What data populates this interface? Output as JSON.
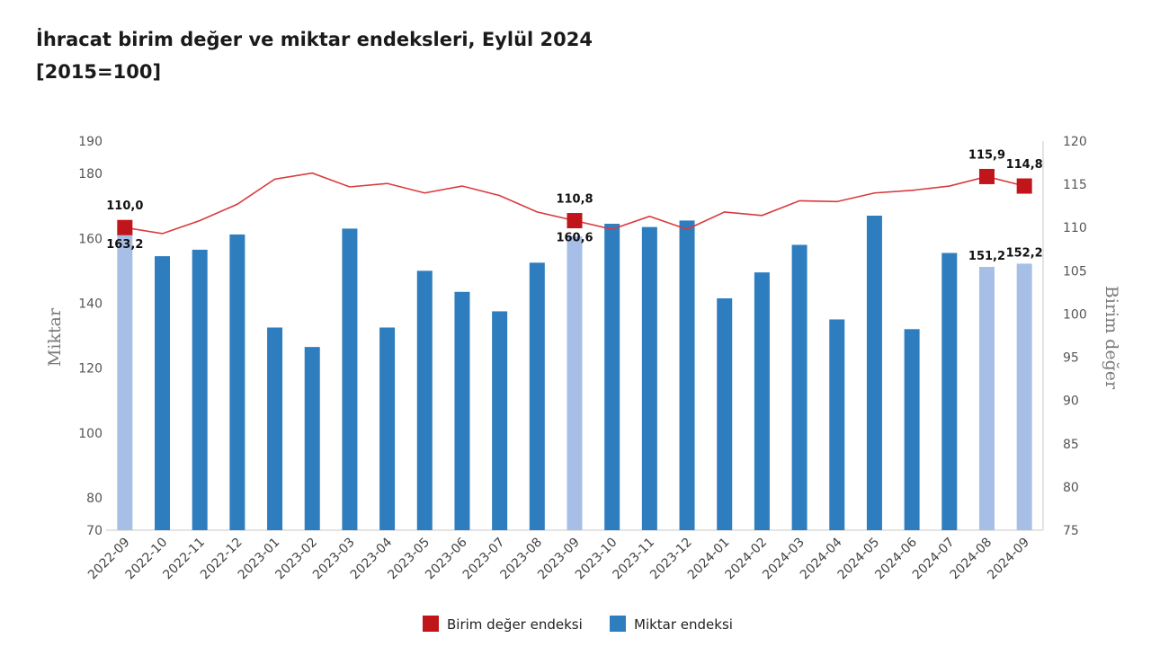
{
  "title": {
    "line1": "İhracat birim değer ve miktar endeksleri, Eylül 2024",
    "line2": "[2015=100]"
  },
  "colors": {
    "bar": "#2e7ebf",
    "bar_highlight": "#a7bfe6",
    "line": "#d9393d",
    "marker": "#c0151b",
    "axis": "#c8c8c8"
  },
  "chart_data": {
    "type": "bar+line",
    "categories": [
      "2022-09",
      "2022-10",
      "2022-11",
      "2022-12",
      "2023-01",
      "2023-02",
      "2023-03",
      "2023-04",
      "2023-05",
      "2023-06",
      "2023-07",
      "2023-08",
      "2023-09",
      "2023-10",
      "2023-11",
      "2023-12",
      "2024-01",
      "2024-02",
      "2024-03",
      "2024-04",
      "2024-05",
      "2024-06",
      "2024-07",
      "2024-08",
      "2024-09"
    ],
    "series": [
      {
        "name": "Miktar endeksi",
        "type": "bar",
        "axis": "left",
        "values": [
          163.2,
          154.5,
          156.5,
          161.2,
          132.5,
          126.5,
          163.0,
          132.5,
          150.0,
          143.5,
          137.5,
          152.5,
          160.6,
          164.5,
          163.5,
          165.5,
          141.5,
          149.5,
          158.0,
          135.0,
          167.0,
          132.0,
          155.5,
          151.2,
          152.2
        ],
        "highlighted": [
          "2022-09",
          "2023-09",
          "2024-08",
          "2024-09"
        ],
        "labels": {
          "2022-09": "163,2",
          "2023-09": "160,6",
          "2024-08": "151,2",
          "2024-09": "152,2"
        }
      },
      {
        "name": "Birim değer endeksi",
        "type": "line",
        "axis": "right",
        "values": [
          110.0,
          109.3,
          110.8,
          112.7,
          115.6,
          116.3,
          114.7,
          115.1,
          114.0,
          114.8,
          113.7,
          111.8,
          110.8,
          109.8,
          111.3,
          109.8,
          111.8,
          111.4,
          113.1,
          113.0,
          114.0,
          114.3,
          114.8,
          115.9,
          114.8
        ],
        "markers": {
          "2022-09": "110,0",
          "2023-09": "110,8",
          "2024-08": "115,9",
          "2024-09": "114,8"
        }
      }
    ],
    "y_left": {
      "label": "Miktar",
      "range": [
        70,
        190
      ],
      "ticks": [
        70,
        80,
        100,
        120,
        140,
        160,
        180,
        190
      ]
    },
    "y_right": {
      "label": "Birim değer",
      "range": [
        75,
        120
      ],
      "ticks": [
        75,
        80,
        85,
        90,
        95,
        100,
        105,
        110,
        115,
        120
      ]
    },
    "legend": {
      "position": "bottom",
      "items": [
        "Birim değer endeksi",
        "Miktar endeksi"
      ]
    },
    "grid": false
  }
}
